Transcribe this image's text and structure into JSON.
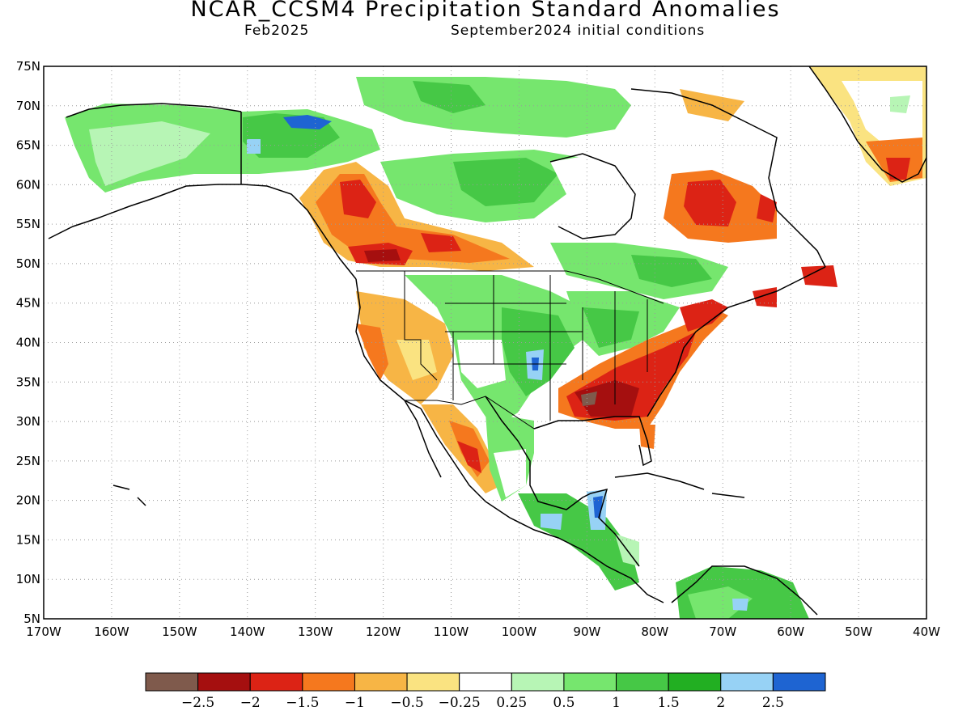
{
  "title": "NCAR_CCSM4 Precipitation Standard Anomalies",
  "valid_month": "Feb2025",
  "initial_conditions": "September2024 initial conditions",
  "map": {
    "lon_range": [
      -170,
      -40
    ],
    "lat_range": [
      5,
      75
    ],
    "lon_ticks": [
      "170W",
      "160W",
      "150W",
      "140W",
      "130W",
      "120W",
      "110W",
      "100W",
      "90W",
      "80W",
      "70W",
      "60W",
      "50W",
      "40W"
    ],
    "lat_ticks": [
      "75N",
      "70N",
      "65N",
      "60N",
      "55N",
      "50N",
      "45N",
      "40N",
      "35N",
      "30N",
      "25N",
      "20N",
      "15N",
      "10N",
      "5N"
    ],
    "grid": "dotted"
  },
  "colorbar": {
    "colors": [
      "#7f5a4c",
      "#a50f0f",
      "#dc2315",
      "#f5781e",
      "#f7b545",
      "#fae381",
      "#ffffff",
      "#b7f5b5",
      "#76e66e",
      "#46c846",
      "#22af22",
      "#97d2f5",
      "#1e64d2"
    ],
    "labels": [
      "−2.5",
      "−2",
      "−1.5",
      "−1",
      "−0.5",
      "−0.25",
      "0.25",
      "0.5",
      "1",
      "1.5",
      "2",
      "2.5"
    ]
  }
}
